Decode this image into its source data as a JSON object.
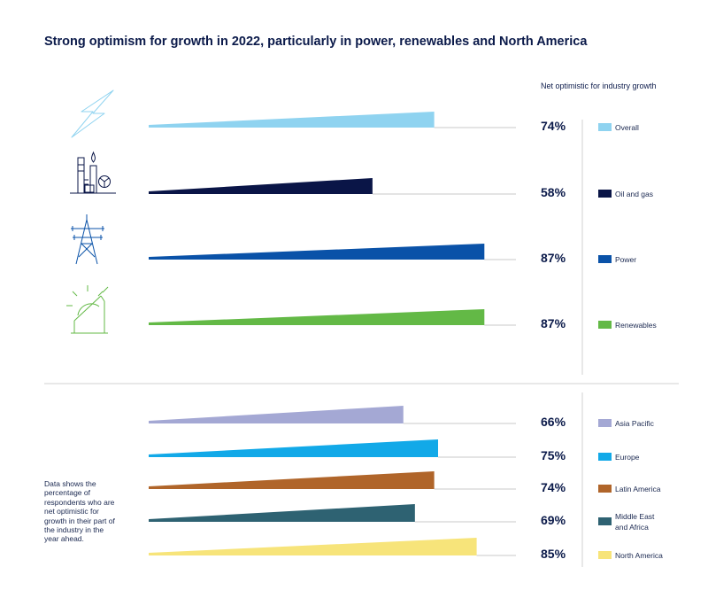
{
  "title": "Strong optimism for growth in 2022, particularly in power, renewables and North America",
  "subtitle": "Net optimistic for industry growth",
  "note": "Data shows the percentage of respondents who are net optimistic for growth in their part of the industry in the year ahead.",
  "colors": {
    "Overall": "#8fd3f0",
    "Oil and gas": "#0a1547",
    "Power": "#0a52a8",
    "Renewables": "#63b946",
    "Asia Pacific": "#a4a8d4",
    "Europe": "#12a9e8",
    "Latin America": "#b0652a",
    "Middle East and Africa": "#2e6272",
    "North America": "#f7e47a"
  },
  "chart_data": [
    {
      "type": "bar",
      "categories": [
        "Overall",
        "Oil and gas",
        "Power",
        "Renewables"
      ],
      "values": [
        74,
        58,
        87,
        87
      ],
      "value_labels": [
        "74%",
        "58%",
        "87%",
        "87%"
      ],
      "legend_labels": [
        [
          "Overall"
        ],
        [
          "Oil and gas"
        ],
        [
          "Power"
        ],
        [
          "Renewables"
        ]
      ],
      "icons": [
        "lightning-icon",
        "oil-refinery-icon",
        "power-pylon-icon",
        "solar-sun-icon"
      ],
      "unit": "%",
      "legend": "right"
    },
    {
      "type": "bar",
      "categories": [
        "Asia Pacific",
        "Europe",
        "Latin America",
        "Middle East and Africa",
        "North America"
      ],
      "values": [
        66,
        75,
        74,
        69,
        85
      ],
      "value_labels": [
        "66%",
        "75%",
        "74%",
        "69%",
        "85%"
      ],
      "legend_labels": [
        [
          "Asia Pacific"
        ],
        [
          "Europe"
        ],
        [
          "Latin America"
        ],
        [
          "Middle East",
          "and Africa"
        ],
        [
          "North America"
        ]
      ],
      "unit": "%",
      "legend": "right"
    }
  ]
}
